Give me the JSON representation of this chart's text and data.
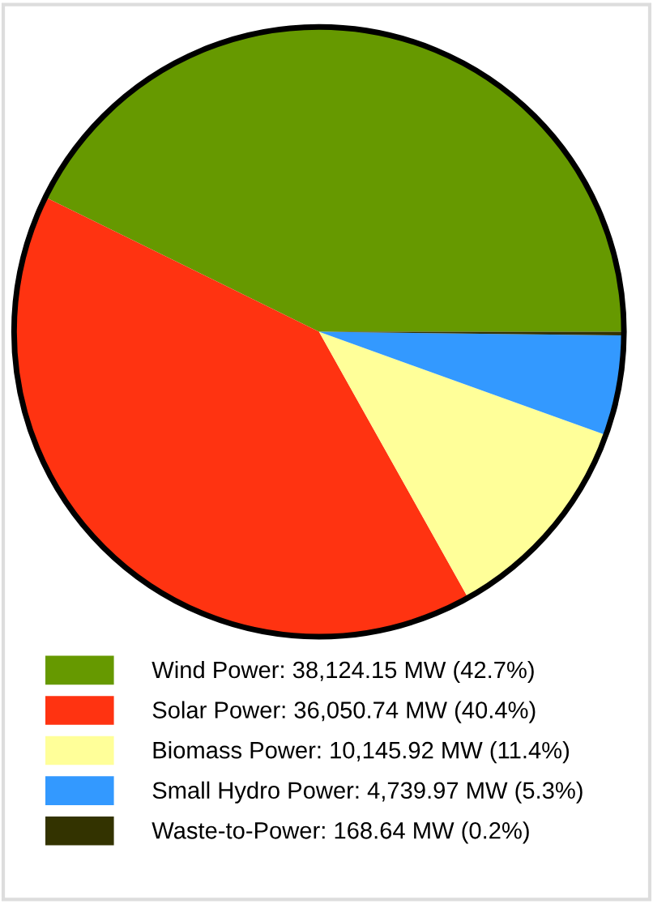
{
  "chart_data": {
    "type": "pie",
    "categories": [
      "Wind Power: 38,124.15 MW (42.7%)",
      "Solar Power: 36,050.74 MW (40.4%)",
      "Biomass Power: 10,145.92 MW (11.4%)",
      "Small Hydro Power: 4,739.97 MW (5.3%)",
      "Waste-to-Power: 168.64 MW (0.2%)"
    ],
    "values": [
      38124.15,
      36050.74,
      10145.92,
      4739.97,
      168.64
    ],
    "colors": [
      "#669900",
      "#ff3311",
      "#ffff99",
      "#3399ff",
      "#333300"
    ],
    "legend": "bottom"
  }
}
